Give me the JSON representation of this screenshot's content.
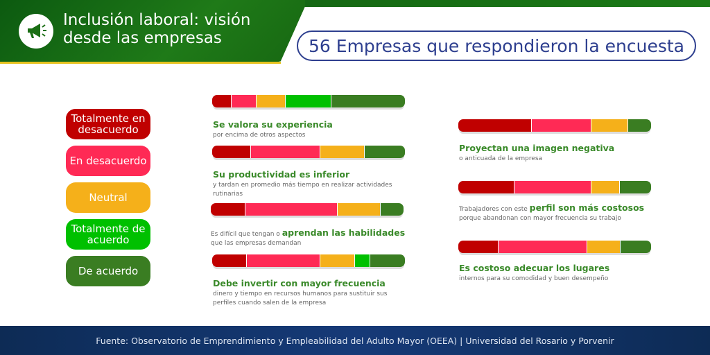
{
  "header": {
    "title_line1": "Inclusión laboral: visión",
    "title_line2": "desde las empresas",
    "icon": "megaphone-icon"
  },
  "count_label": "56 Empresas que respondieron la encuesta",
  "chart_data": {
    "type": "bar",
    "orientation": "horizontal-stacked-100",
    "legend": [
      {
        "label": "Totalmente en desacuerdo",
        "color": "#c00000"
      },
      {
        "label": "En desacuerdo",
        "color": "#ff2a55"
      },
      {
        "label": "Neutral",
        "color": "#f5b01a"
      },
      {
        "label": "Totalmente de acuerdo",
        "color": "#00c000"
      },
      {
        "label": "De acuerdo",
        "color": "#3a7d22"
      }
    ],
    "items": [
      {
        "pre": "",
        "highlight": "Se valora su experiencia",
        "sub": "por encima de otros aspectos",
        "values": [
          10,
          13,
          15,
          24,
          38
        ]
      },
      {
        "pre": "",
        "highlight": "Su productividad es inferior",
        "sub": "y tardan en promedio más tiempo en realizar actividades rutinarias",
        "values": [
          20,
          36,
          23,
          0,
          21
        ]
      },
      {
        "pre": "Es difícil que tengan o",
        "highlight": "aprendan las habilidades",
        "sub": "que las empresas demandan",
        "values": [
          18,
          48,
          22,
          0,
          12
        ]
      },
      {
        "pre": "",
        "highlight": "Debe invertir con mayor frecuencia",
        "sub": "dinero y tiempo en recursos humanos para sustituir sus perfiles cuando salen de la empresa",
        "values": [
          18,
          38,
          18,
          8,
          18
        ]
      },
      {
        "pre": "",
        "highlight": "Proyectan una imagen negativa",
        "sub": "o anticuada de la empresa",
        "values": [
          38,
          31,
          19,
          0,
          12
        ]
      },
      {
        "pre": "Trabajadores con este",
        "highlight": "perfil son más costosos",
        "sub": "porque abandonan con mayor frecuencia su trabajo",
        "values": [
          29,
          40,
          15,
          0,
          16
        ]
      },
      {
        "pre": "",
        "highlight": "Es costoso adecuar los lugares",
        "sub": "internos para su comodidad y buen desempeño",
        "values": [
          21,
          46,
          17,
          0,
          16
        ]
      }
    ]
  },
  "footer": "Fuente: Observatorio de Emprendimiento y Empleabilidad del Adulto Mayor (OEEA) | Universidad del Rosario y Porvenir"
}
